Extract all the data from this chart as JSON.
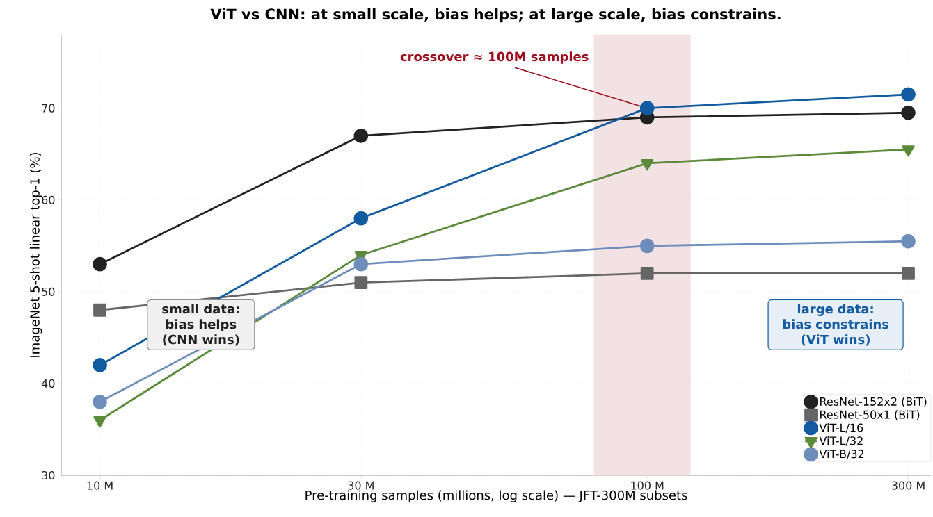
{
  "chart_data": {
    "type": "line",
    "title": "ViT vs CNN: at small scale, bias helps; at large scale, bias constrains.",
    "xlabel": "Pre-training samples (millions, log scale) — JFT-300M subsets",
    "ylabel": "ImageNet 5-shot linear top-1 (%)",
    "x": [
      10,
      30,
      100,
      300
    ],
    "log": "x",
    "xlim": [
      8.5,
      330
    ],
    "ylim": [
      30,
      78
    ],
    "xticks": [
      {
        "value": 10,
        "label": "10 M"
      },
      {
        "value": 30,
        "label": "30 M"
      },
      {
        "value": 100,
        "label": "100 M"
      },
      {
        "value": 300,
        "label": "300 M"
      }
    ],
    "yticks": [
      30,
      40,
      50,
      60,
      70
    ],
    "grid": true,
    "legend": "bottom right",
    "series": [
      {
        "name": "ResNet-152x2 (BiT)",
        "color": "#222222",
        "marker": "circle",
        "values": [
          53,
          67,
          69,
          69.5
        ]
      },
      {
        "name": "ResNet-50x1 (BiT)",
        "color": "#666666",
        "marker": "square",
        "values": [
          48,
          51,
          52,
          52
        ]
      },
      {
        "name": "ViT-L/16",
        "color": "#135ba1",
        "marker": "circle",
        "values": [
          42,
          58,
          70,
          71.5
        ]
      },
      {
        "name": "ViT-L/32",
        "color": "#5a8a3a",
        "marker": "triangle",
        "values": [
          36,
          54,
          64,
          65.5
        ]
      },
      {
        "name": "ViT-B/32",
        "color": "#6f8dbb",
        "marker": "circle",
        "values": [
          38,
          53,
          55,
          55.5
        ]
      }
    ],
    "bands": [
      {
        "axis": "x",
        "from": 80,
        "to": 120,
        "color": "#f3e2e3"
      }
    ],
    "annotations": [
      {
        "text": "crossover ≈ 100M samples",
        "x": 100,
        "y": 70
      },
      "small data: bias helps (CNN wins)",
      "large data: bias constrains (ViT wins)"
    ]
  }
}
